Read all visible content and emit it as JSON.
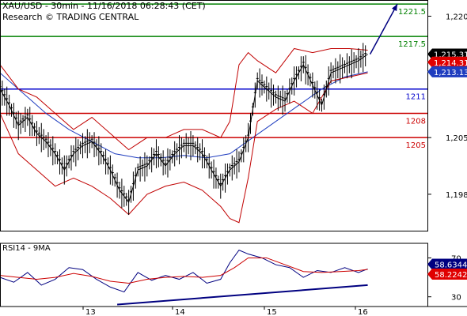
{
  "header": {
    "title": "XAU/USD - 30min - 11/16/2018 06:28:43 (CET)",
    "source": "Research © TRADING CENTRAL"
  },
  "chart_data": [
    {
      "type": "line",
      "subtype": "candlestick",
      "title": "XAU/USD - 30min - 11/16/2018 06:28:43 (CET)",
      "y_ticks": [
        "1,220",
        "1,205",
        "1,198"
      ],
      "x_ticks": [
        "13",
        "14",
        "15",
        "16"
      ],
      "ylim": [
        1193.5,
        1222
      ],
      "grid": false,
      "levels": [
        {
          "value": 1221.5,
          "label": "1221.5",
          "color": "#008000"
        },
        {
          "value": 1217.5,
          "label": "1217.5",
          "color": "#008000"
        },
        {
          "value": 1211,
          "label": "1211",
          "color": "#0000cc"
        },
        {
          "value": 1208,
          "label": "1208",
          "color": "#cc0000"
        },
        {
          "value": 1205,
          "label": "1205",
          "color": "#cc0000"
        }
      ],
      "price_tags": [
        {
          "value": 1215.31,
          "label": "1,215.31",
          "color": "#000000"
        },
        {
          "value": 1214.31,
          "label": "1,214.31",
          "color": "#e00000"
        },
        {
          "value": 1213.13,
          "label": "1,213.13",
          "color": "#1f3dbf"
        }
      ],
      "series": [
        {
          "name": "price",
          "color": "#000000",
          "x": [
            0,
            4,
            8,
            12,
            16,
            20,
            24,
            28,
            32,
            36,
            40,
            44,
            48,
            52,
            56,
            60,
            64,
            68,
            72,
            76,
            80,
            84,
            88,
            92,
            96,
            100,
            104,
            108,
            112,
            116,
            120,
            124,
            128,
            132,
            136,
            140,
            144,
            148,
            152,
            156,
            160
          ],
          "values": [
            1211,
            1209,
            1206.5,
            1207.5,
            1205.5,
            1204.5,
            1203,
            1201,
            1203,
            1204,
            1204.5,
            1203,
            1201,
            1198.5,
            1197,
            1201,
            1201.5,
            1203,
            1201.5,
            1203,
            1204,
            1204,
            1203,
            1201,
            1199,
            1201,
            1202,
            1205,
            1212,
            1211,
            1210,
            1209.5,
            1212,
            1214,
            1211.5,
            1209,
            1213,
            1213.5,
            1214,
            1214.5,
            1215.3
          ]
        },
        {
          "name": "ma",
          "color": "#1f3dbf",
          "x": [
            0,
            10,
            20,
            30,
            40,
            50,
            60,
            70,
            80,
            90,
            100,
            110,
            120,
            130,
            140,
            150,
            160
          ],
          "values": [
            1213,
            1210.5,
            1208,
            1206,
            1204.5,
            1203,
            1202.5,
            1202.5,
            1202.8,
            1202.5,
            1203,
            1205,
            1207,
            1209,
            1211,
            1212.5,
            1213.13
          ]
        },
        {
          "name": "bb_upper",
          "color": "#c00000",
          "x": [
            0,
            8,
            16,
            24,
            32,
            40,
            48,
            56,
            64,
            72,
            80,
            88,
            96,
            100,
            104,
            108,
            112,
            120,
            128,
            136,
            144,
            152,
            160
          ],
          "values": [
            1214,
            1211,
            1210,
            1208,
            1206,
            1207.5,
            1205.5,
            1203.5,
            1205,
            1205,
            1206,
            1206,
            1205,
            1207,
            1214,
            1215.5,
            1214.5,
            1213,
            1216,
            1215.5,
            1216,
            1216,
            1215.8
          ]
        },
        {
          "name": "bb_lower",
          "color": "#c00000",
          "x": [
            0,
            8,
            16,
            24,
            32,
            40,
            48,
            56,
            64,
            72,
            80,
            88,
            96,
            100,
            104,
            108,
            112,
            120,
            128,
            136,
            144,
            152,
            160
          ],
          "values": [
            1208,
            1203,
            1201,
            1199,
            1200,
            1199,
            1197.5,
            1195.5,
            1198,
            1199,
            1199.5,
            1198.5,
            1196.5,
            1195,
            1194.5,
            1200,
            1207,
            1208.5,
            1209.5,
            1208,
            1212,
            1212.5,
            1213
          ]
        }
      ],
      "projection": {
        "from": [
          160,
          1215.3
        ],
        "to": [
          166,
          1221.5
        ],
        "color": "#000080"
      }
    },
    {
      "type": "line",
      "title": "RSI14 - 9MA",
      "y_ticks": [
        "70",
        "30"
      ],
      "ylim": [
        20,
        85
      ],
      "price_tags": [
        {
          "value": 58.6344,
          "label": "58.6344",
          "color": "#000080"
        },
        {
          "value": 58.2242,
          "label": "58.2242",
          "color": "#e00000"
        }
      ],
      "series": [
        {
          "name": "RSI14",
          "color": "#000080",
          "x": [
            0,
            6,
            12,
            18,
            24,
            30,
            36,
            42,
            48,
            54,
            60,
            66,
            72,
            78,
            84,
            90,
            96,
            100,
            104,
            108,
            114,
            120,
            126,
            132,
            138,
            144,
            150,
            156,
            160
          ],
          "values": [
            50,
            45,
            55,
            42,
            48,
            60,
            58,
            48,
            40,
            35,
            55,
            47,
            52,
            48,
            55,
            44,
            48,
            65,
            78,
            74,
            70,
            63,
            60,
            50,
            57,
            55,
            60,
            55,
            58.63
          ]
        },
        {
          "name": "9MA",
          "color": "#cc0000",
          "x": [
            0,
            8,
            16,
            24,
            32,
            40,
            48,
            56,
            64,
            72,
            80,
            88,
            96,
            102,
            108,
            116,
            124,
            132,
            140,
            148,
            156,
            160
          ],
          "values": [
            52,
            50,
            48,
            50,
            54,
            51,
            46,
            44,
            48,
            50,
            51,
            50,
            52,
            60,
            70,
            70,
            63,
            56,
            55,
            56,
            57,
            58.22
          ]
        }
      ],
      "trendline": {
        "from": [
          51,
          22
        ],
        "to": [
          160,
          42
        ],
        "color": "#000080"
      }
    }
  ]
}
